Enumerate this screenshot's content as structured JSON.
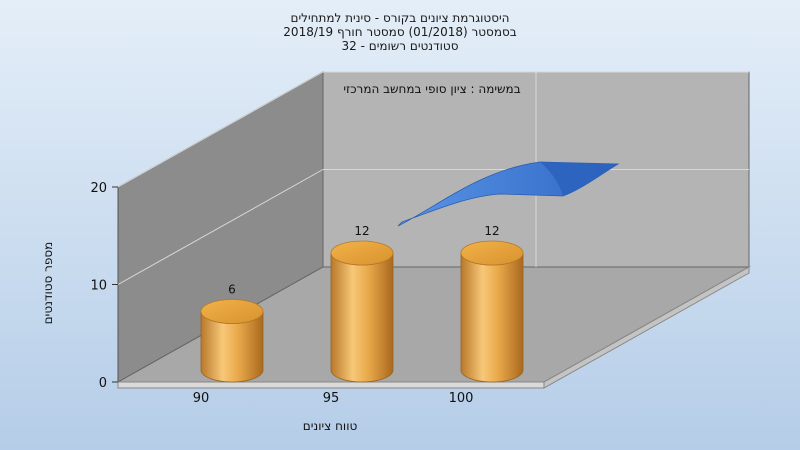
{
  "chart_data": {
    "type": "bar",
    "title_lines": [
      "היסטוגרמת ציונים בקורס - סינית למתחילים",
      "בסמסטר  (01/2018)  סמסטר חורף 2018/19",
      "סטודנטים רשומים - 32"
    ],
    "annotation": "במשימה : ציון סופי במחשב המרכזי",
    "xlabel": "טווח ציונים",
    "ylabel": "מספר סטודנטים",
    "categories": [
      "90",
      "95",
      "100"
    ],
    "series": [
      {
        "values": [
          6,
          12,
          12
        ]
      }
    ],
    "ylim": [
      0,
      20
    ],
    "yticks": [
      0,
      10,
      20
    ],
    "data_labels": [
      "6",
      "12",
      "12"
    ],
    "grid": true,
    "bar_color": "#E8A33A",
    "curve_color": "#3A7BD5",
    "background_color": "#BFD6EE"
  }
}
